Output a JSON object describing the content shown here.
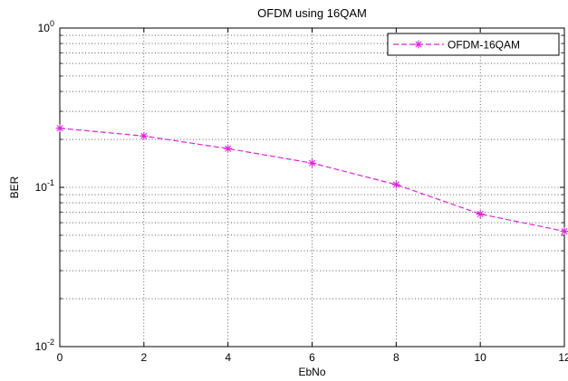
{
  "chart_data": {
    "type": "line",
    "title": "OFDM using 16QAM",
    "xlabel": "EbNo",
    "ylabel": "BER",
    "xlim": [
      0,
      12
    ],
    "ylim": [
      0.01,
      1
    ],
    "yscale": "log",
    "grid": true,
    "legend_position": "top-right",
    "x_ticks": [
      "0",
      "2",
      "4",
      "6",
      "8",
      "10",
      "12"
    ],
    "y_ticks": [
      {
        "base": "10",
        "exp": "0"
      },
      {
        "base": "10",
        "exp": "-1"
      },
      {
        "base": "10",
        "exp": "-2"
      }
    ],
    "series": [
      {
        "name": "OFDM-16QAM",
        "color": "#e020e0",
        "line_style": "dashed",
        "marker": "star",
        "x": [
          0,
          2,
          4,
          6,
          8,
          10,
          12
        ],
        "y": [
          0.235,
          0.21,
          0.175,
          0.142,
          0.104,
          0.068,
          0.053
        ]
      }
    ]
  }
}
